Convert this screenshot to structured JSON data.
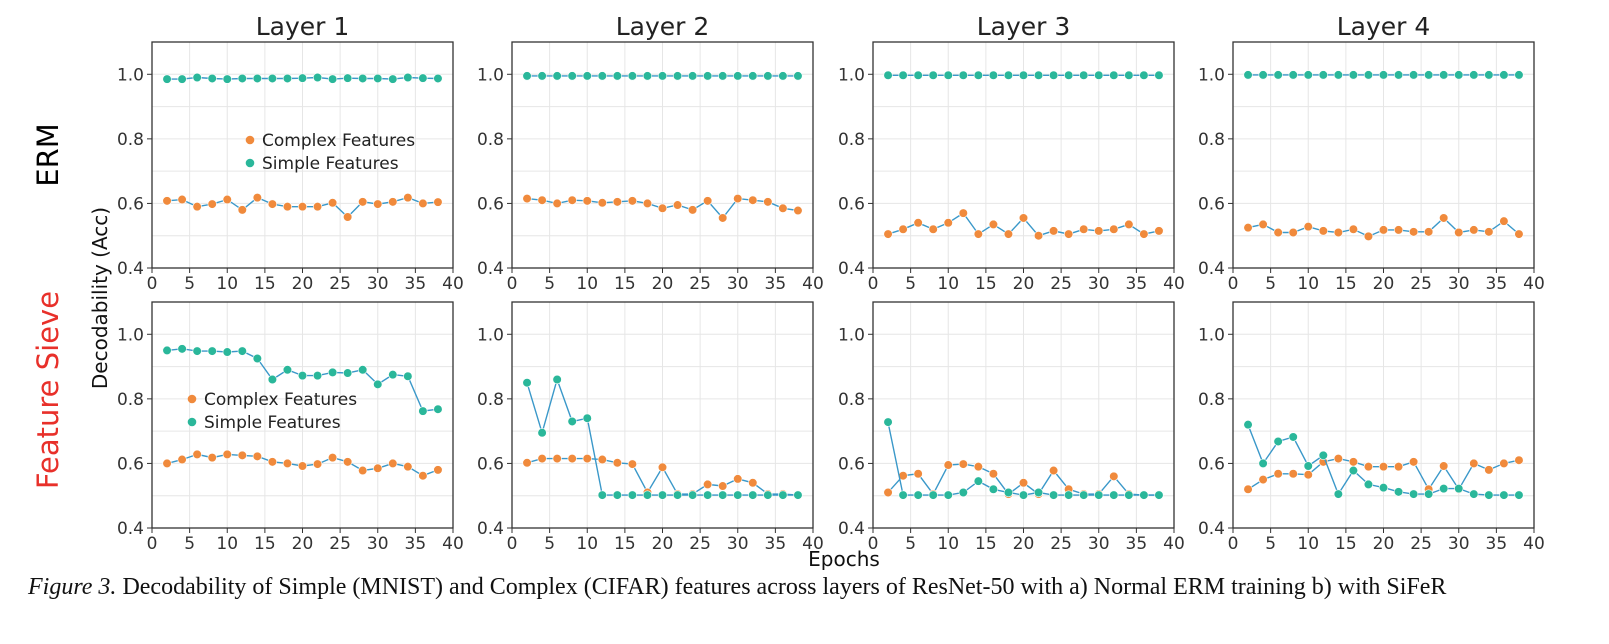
{
  "figure": {
    "column_titles": [
      "Layer 1",
      "Layer 2",
      "Layer 3",
      "Layer 4"
    ],
    "row_labels": [
      {
        "text": "ERM",
        "color": "#000000"
      },
      {
        "text": "Feature Sieve",
        "color": "#e8302a"
      }
    ],
    "ylabel": "Decodability (Acc)",
    "xlabel": "Epochs",
    "legend": {
      "complex": "Complex Features",
      "simple": "Simple Features"
    },
    "colors": {
      "complex_marker": "#f08a3c",
      "simple_marker": "#2ab79a",
      "line": "#3a98c9",
      "grid": "#e6e6e6"
    }
  },
  "caption": {
    "label": "Figure 3.",
    "text": " Decodability of Simple (MNIST) and Complex (CIFAR) features across layers of ResNet-50 with a) Normal ERM training b) with ",
    "method": "SiFeR"
  },
  "chart_data": [
    {
      "type": "line",
      "row": "ERM",
      "title": "Layer 1",
      "xlim": [
        0,
        40
      ],
      "ylim": [
        0.4,
        1.1
      ],
      "xticks": [
        0,
        5,
        10,
        15,
        20,
        25,
        30,
        35,
        40
      ],
      "yticks": [
        0.4,
        0.6,
        0.8,
        1.0
      ],
      "legend_position": "center-right",
      "x": [
        2,
        4,
        6,
        8,
        10,
        12,
        14,
        16,
        18,
        20,
        22,
        24,
        26,
        28,
        30,
        32,
        34,
        36,
        38
      ],
      "series": [
        {
          "name": "Complex Features",
          "values": [
            0.608,
            0.612,
            0.59,
            0.598,
            0.612,
            0.58,
            0.618,
            0.598,
            0.59,
            0.59,
            0.59,
            0.602,
            0.558,
            0.605,
            0.598,
            0.605,
            0.618,
            0.6,
            0.604
          ]
        },
        {
          "name": "Simple Features",
          "values": [
            0.985,
            0.985,
            0.99,
            0.987,
            0.985,
            0.987,
            0.987,
            0.987,
            0.987,
            0.988,
            0.99,
            0.985,
            0.988,
            0.987,
            0.987,
            0.985,
            0.99,
            0.988,
            0.987
          ]
        }
      ]
    },
    {
      "type": "line",
      "row": "ERM",
      "title": "Layer 2",
      "xlim": [
        0,
        40
      ],
      "ylim": [
        0.4,
        1.1
      ],
      "xticks": [
        0,
        5,
        10,
        15,
        20,
        25,
        30,
        35,
        40
      ],
      "yticks": [
        0.4,
        0.6,
        0.8,
        1.0
      ],
      "legend_position": "none",
      "x": [
        2,
        4,
        6,
        8,
        10,
        12,
        14,
        16,
        18,
        20,
        22,
        24,
        26,
        28,
        30,
        32,
        34,
        36,
        38
      ],
      "series": [
        {
          "name": "Complex Features",
          "values": [
            0.615,
            0.61,
            0.6,
            0.61,
            0.608,
            0.602,
            0.605,
            0.608,
            0.6,
            0.585,
            0.595,
            0.58,
            0.608,
            0.555,
            0.615,
            0.61,
            0.605,
            0.585,
            0.578
          ]
        },
        {
          "name": "Simple Features",
          "values": [
            0.995,
            0.995,
            0.995,
            0.995,
            0.995,
            0.995,
            0.995,
            0.995,
            0.995,
            0.995,
            0.995,
            0.995,
            0.995,
            0.995,
            0.995,
            0.995,
            0.995,
            0.995,
            0.995
          ]
        }
      ]
    },
    {
      "type": "line",
      "row": "ERM",
      "title": "Layer 3",
      "xlim": [
        0,
        40
      ],
      "ylim": [
        0.4,
        1.1
      ],
      "xticks": [
        0,
        5,
        10,
        15,
        20,
        25,
        30,
        35,
        40
      ],
      "yticks": [
        0.4,
        0.6,
        0.8,
        1.0
      ],
      "legend_position": "none",
      "x": [
        2,
        4,
        6,
        8,
        10,
        12,
        14,
        16,
        18,
        20,
        22,
        24,
        26,
        28,
        30,
        32,
        34,
        36,
        38
      ],
      "series": [
        {
          "name": "Complex Features",
          "values": [
            0.505,
            0.52,
            0.54,
            0.52,
            0.54,
            0.57,
            0.505,
            0.535,
            0.505,
            0.555,
            0.5,
            0.515,
            0.505,
            0.52,
            0.515,
            0.52,
            0.535,
            0.505,
            0.515
          ]
        },
        {
          "name": "Simple Features",
          "values": [
            0.997,
            0.997,
            0.997,
            0.997,
            0.997,
            0.997,
            0.997,
            0.997,
            0.997,
            0.997,
            0.997,
            0.997,
            0.997,
            0.997,
            0.997,
            0.997,
            0.997,
            0.997,
            0.997
          ]
        }
      ]
    },
    {
      "type": "line",
      "row": "ERM",
      "title": "Layer 4",
      "xlim": [
        0,
        40
      ],
      "ylim": [
        0.4,
        1.1
      ],
      "xticks": [
        0,
        5,
        10,
        15,
        20,
        25,
        30,
        35,
        40
      ],
      "yticks": [
        0.4,
        0.6,
        0.8,
        1.0
      ],
      "legend_position": "none",
      "x": [
        2,
        4,
        6,
        8,
        10,
        12,
        14,
        16,
        18,
        20,
        22,
        24,
        26,
        28,
        30,
        32,
        34,
        36,
        38
      ],
      "series": [
        {
          "name": "Complex Features",
          "values": [
            0.525,
            0.535,
            0.51,
            0.51,
            0.528,
            0.515,
            0.51,
            0.52,
            0.498,
            0.518,
            0.518,
            0.512,
            0.512,
            0.555,
            0.51,
            0.518,
            0.512,
            0.545,
            0.505
          ]
        },
        {
          "name": "Simple Features",
          "values": [
            0.998,
            0.998,
            0.998,
            0.998,
            0.998,
            0.998,
            0.998,
            0.998,
            0.998,
            0.998,
            0.998,
            0.998,
            0.998,
            0.998,
            0.998,
            0.998,
            0.998,
            0.998,
            0.998
          ]
        }
      ]
    },
    {
      "type": "line",
      "row": "Feature Sieve",
      "title": "",
      "xlim": [
        0,
        40
      ],
      "ylim": [
        0.4,
        1.1
      ],
      "xticks": [
        0,
        5,
        10,
        15,
        20,
        25,
        30,
        35,
        40
      ],
      "yticks": [
        0.4,
        0.6,
        0.8,
        1.0
      ],
      "legend_position": "center-left",
      "x": [
        2,
        4,
        6,
        8,
        10,
        12,
        14,
        16,
        18,
        20,
        22,
        24,
        26,
        28,
        30,
        32,
        34,
        36,
        38
      ],
      "series": [
        {
          "name": "Complex Features",
          "values": [
            0.6,
            0.612,
            0.628,
            0.618,
            0.628,
            0.625,
            0.622,
            0.605,
            0.6,
            0.592,
            0.598,
            0.618,
            0.605,
            0.578,
            0.585,
            0.6,
            0.59,
            0.562,
            0.58
          ]
        },
        {
          "name": "Simple Features",
          "values": [
            0.95,
            0.955,
            0.948,
            0.948,
            0.945,
            0.948,
            0.925,
            0.86,
            0.89,
            0.872,
            0.872,
            0.882,
            0.88,
            0.89,
            0.845,
            0.875,
            0.87,
            0.762,
            0.768
          ]
        }
      ]
    },
    {
      "type": "line",
      "row": "Feature Sieve",
      "title": "",
      "xlim": [
        0,
        40
      ],
      "ylim": [
        0.4,
        1.1
      ],
      "xticks": [
        0,
        5,
        10,
        15,
        20,
        25,
        30,
        35,
        40
      ],
      "yticks": [
        0.4,
        0.6,
        0.8,
        1.0
      ],
      "legend_position": "none",
      "x": [
        2,
        4,
        6,
        8,
        10,
        12,
        14,
        16,
        18,
        20,
        22,
        24,
        26,
        28,
        30,
        32,
        34,
        36,
        38
      ],
      "series": [
        {
          "name": "Complex Features",
          "values": [
            0.602,
            0.615,
            0.615,
            0.615,
            0.615,
            0.612,
            0.602,
            0.598,
            0.51,
            0.588,
            0.505,
            0.505,
            0.535,
            0.53,
            0.552,
            0.54,
            0.505,
            0.505,
            0.502
          ]
        },
        {
          "name": "Simple Features",
          "values": [
            0.85,
            0.695,
            0.86,
            0.73,
            0.74,
            0.502,
            0.502,
            0.502,
            0.502,
            0.502,
            0.502,
            0.502,
            0.502,
            0.502,
            0.502,
            0.502,
            0.502,
            0.502,
            0.502
          ]
        }
      ]
    },
    {
      "type": "line",
      "row": "Feature Sieve",
      "title": "",
      "xlim": [
        0,
        40
      ],
      "ylim": [
        0.4,
        1.1
      ],
      "xticks": [
        0,
        5,
        10,
        15,
        20,
        25,
        30,
        35,
        40
      ],
      "yticks": [
        0.4,
        0.6,
        0.8,
        1.0
      ],
      "legend_position": "none",
      "x": [
        2,
        4,
        6,
        8,
        10,
        12,
        14,
        16,
        18,
        20,
        22,
        24,
        26,
        28,
        30,
        32,
        34,
        36,
        38
      ],
      "series": [
        {
          "name": "Complex Features",
          "values": [
            0.51,
            0.562,
            0.568,
            0.505,
            0.595,
            0.598,
            0.59,
            0.568,
            0.505,
            0.54,
            0.505,
            0.578,
            0.52,
            0.505,
            0.505,
            0.56,
            0.505,
            0.502,
            0.502
          ]
        },
        {
          "name": "Simple Features",
          "values": [
            0.728,
            0.502,
            0.502,
            0.502,
            0.502,
            0.51,
            0.545,
            0.52,
            0.51,
            0.502,
            0.51,
            0.502,
            0.502,
            0.502,
            0.502,
            0.502,
            0.502,
            0.502,
            0.502
          ]
        }
      ]
    },
    {
      "type": "line",
      "row": "Feature Sieve",
      "title": "",
      "xlim": [
        0,
        40
      ],
      "ylim": [
        0.4,
        1.1
      ],
      "xticks": [
        0,
        5,
        10,
        15,
        20,
        25,
        30,
        35,
        40
      ],
      "yticks": [
        0.4,
        0.6,
        0.8,
        1.0
      ],
      "legend_position": "none",
      "x": [
        2,
        4,
        6,
        8,
        10,
        12,
        14,
        16,
        18,
        20,
        22,
        24,
        26,
        28,
        30,
        32,
        34,
        36,
        38
      ],
      "series": [
        {
          "name": "Complex Features",
          "values": [
            0.52,
            0.55,
            0.568,
            0.568,
            0.565,
            0.605,
            0.615,
            0.605,
            0.59,
            0.59,
            0.59,
            0.605,
            0.52,
            0.592,
            0.52,
            0.6,
            0.58,
            0.6,
            0.61
          ]
        },
        {
          "name": "Simple Features",
          "values": [
            0.72,
            0.6,
            0.668,
            0.682,
            0.592,
            0.625,
            0.505,
            0.578,
            0.535,
            0.525,
            0.512,
            0.505,
            0.505,
            0.522,
            0.522,
            0.505,
            0.502,
            0.502,
            0.502
          ]
        }
      ]
    }
  ]
}
